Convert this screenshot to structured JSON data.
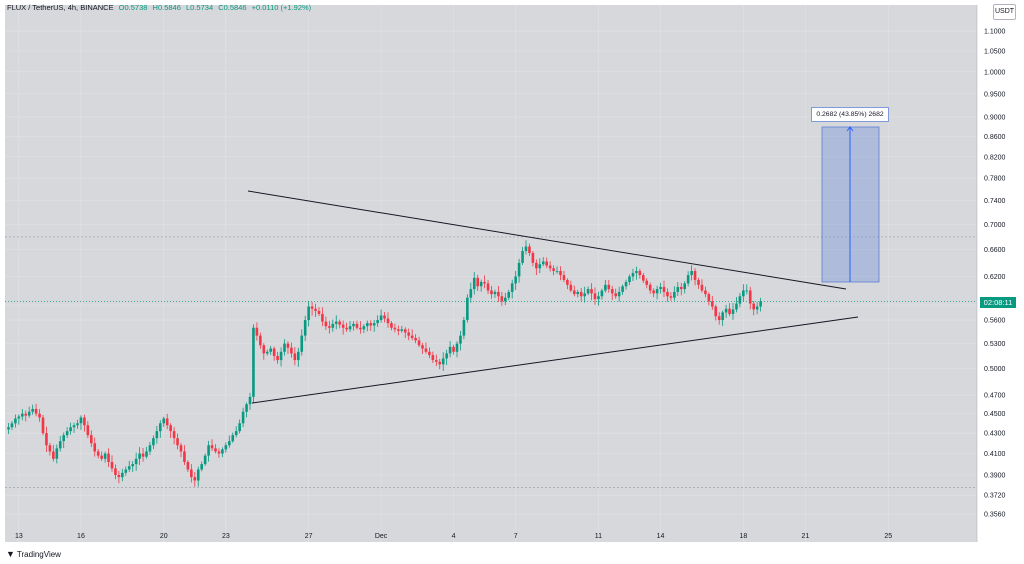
{
  "header": {
    "symbol": "FLUX / TetherUS, 4h, BINANCE",
    "open": "O0.5738",
    "high": "H0.5846",
    "low": "L0.5734",
    "close": "C0.5846",
    "change": "+0.0110 (+1.92%)"
  },
  "currency": "USDT",
  "countdown": "02:08:11",
  "measure_label": "0.2682 (43.85%) 2682",
  "logo_text": "TradingView",
  "chart_data": {
    "type": "candlestick",
    "y_ticks": [
      "1.1000",
      "1.0500",
      "1.0000",
      "0.9500",
      "0.9000",
      "0.8600",
      "0.8200",
      "0.7800",
      "0.7400",
      "0.7000",
      "0.6600",
      "0.6200",
      "0.5800",
      "0.5600",
      "0.5300",
      "0.5000",
      "0.4700",
      "0.4500",
      "0.4300",
      "0.4100",
      "0.3900",
      "0.3720",
      "0.3560"
    ],
    "x_ticks": [
      {
        "label": "13",
        "bar": 3
      },
      {
        "label": "16",
        "bar": 21
      },
      {
        "label": "20",
        "bar": 45
      },
      {
        "label": "23",
        "bar": 63
      },
      {
        "label": "27",
        "bar": 87
      },
      {
        "label": "Dec",
        "bar": 108
      },
      {
        "label": "4",
        "bar": 129
      },
      {
        "label": "7",
        "bar": 147
      },
      {
        "label": "11",
        "bar": 171
      },
      {
        "label": "14",
        "bar": 189
      },
      {
        "label": "18",
        "bar": 213
      },
      {
        "label": "21",
        "bar": 231
      },
      {
        "label": "25",
        "bar": 255
      }
    ],
    "log_scale": true,
    "up_color": "#089981",
    "down_color": "#f23645",
    "closes": [
      0.436,
      0.44,
      0.445,
      0.447,
      0.45,
      0.448,
      0.452,
      0.455,
      0.45,
      0.446,
      0.43,
      0.418,
      0.412,
      0.405,
      0.415,
      0.422,
      0.428,
      0.432,
      0.436,
      0.438,
      0.44,
      0.446,
      0.438,
      0.428,
      0.42,
      0.412,
      0.408,
      0.405,
      0.41,
      0.402,
      0.396,
      0.39,
      0.388,
      0.392,
      0.395,
      0.398,
      0.4,
      0.405,
      0.41,
      0.407,
      0.412,
      0.418,
      0.425,
      0.432,
      0.44,
      0.445,
      0.438,
      0.432,
      0.425,
      0.418,
      0.412,
      0.402,
      0.395,
      0.388,
      0.385,
      0.395,
      0.4,
      0.408,
      0.418,
      0.415,
      0.412,
      0.41,
      0.414,
      0.418,
      0.422,
      0.428,
      0.432,
      0.44,
      0.452,
      0.46,
      0.468,
      0.55,
      0.54,
      0.528,
      0.518,
      0.52,
      0.524,
      0.515,
      0.51,
      0.52,
      0.53,
      0.525,
      0.518,
      0.51,
      0.52,
      0.54,
      0.56,
      0.578,
      0.575,
      0.572,
      0.568,
      0.558,
      0.552,
      0.55,
      0.555,
      0.558,
      0.554,
      0.55,
      0.548,
      0.552,
      0.555,
      0.55,
      0.548,
      0.552,
      0.556,
      0.553,
      0.556,
      0.56,
      0.566,
      0.562,
      0.556,
      0.55,
      0.548,
      0.546,
      0.548,
      0.544,
      0.54,
      0.537,
      0.534,
      0.528,
      0.524,
      0.52,
      0.516,
      0.51,
      0.508,
      0.505,
      0.512,
      0.518,
      0.526,
      0.52,
      0.53,
      0.54,
      0.56,
      0.59,
      0.602,
      0.618,
      0.606,
      0.612,
      0.61,
      0.6,
      0.595,
      0.598,
      0.592,
      0.585,
      0.59,
      0.598,
      0.61,
      0.62,
      0.64,
      0.658,
      0.665,
      0.655,
      0.64,
      0.632,
      0.638,
      0.642,
      0.636,
      0.632,
      0.628,
      0.628,
      0.622,
      0.615,
      0.608,
      0.6,
      0.595,
      0.598,
      0.592,
      0.596,
      0.602,
      0.596,
      0.588,
      0.592,
      0.6,
      0.608,
      0.602,
      0.596,
      0.592,
      0.598,
      0.606,
      0.612,
      0.62,
      0.625,
      0.628,
      0.622,
      0.614,
      0.608,
      0.6,
      0.596,
      0.602,
      0.605,
      0.598,
      0.592,
      0.59,
      0.598,
      0.605,
      0.602,
      0.61,
      0.622,
      0.628,
      0.615,
      0.608,
      0.6,
      0.595,
      0.585,
      0.578,
      0.565,
      0.56,
      0.57,
      0.575,
      0.568,
      0.574,
      0.582,
      0.592,
      0.6,
      0.6,
      0.582,
      0.574,
      0.578,
      0.585
    ]
  }
}
